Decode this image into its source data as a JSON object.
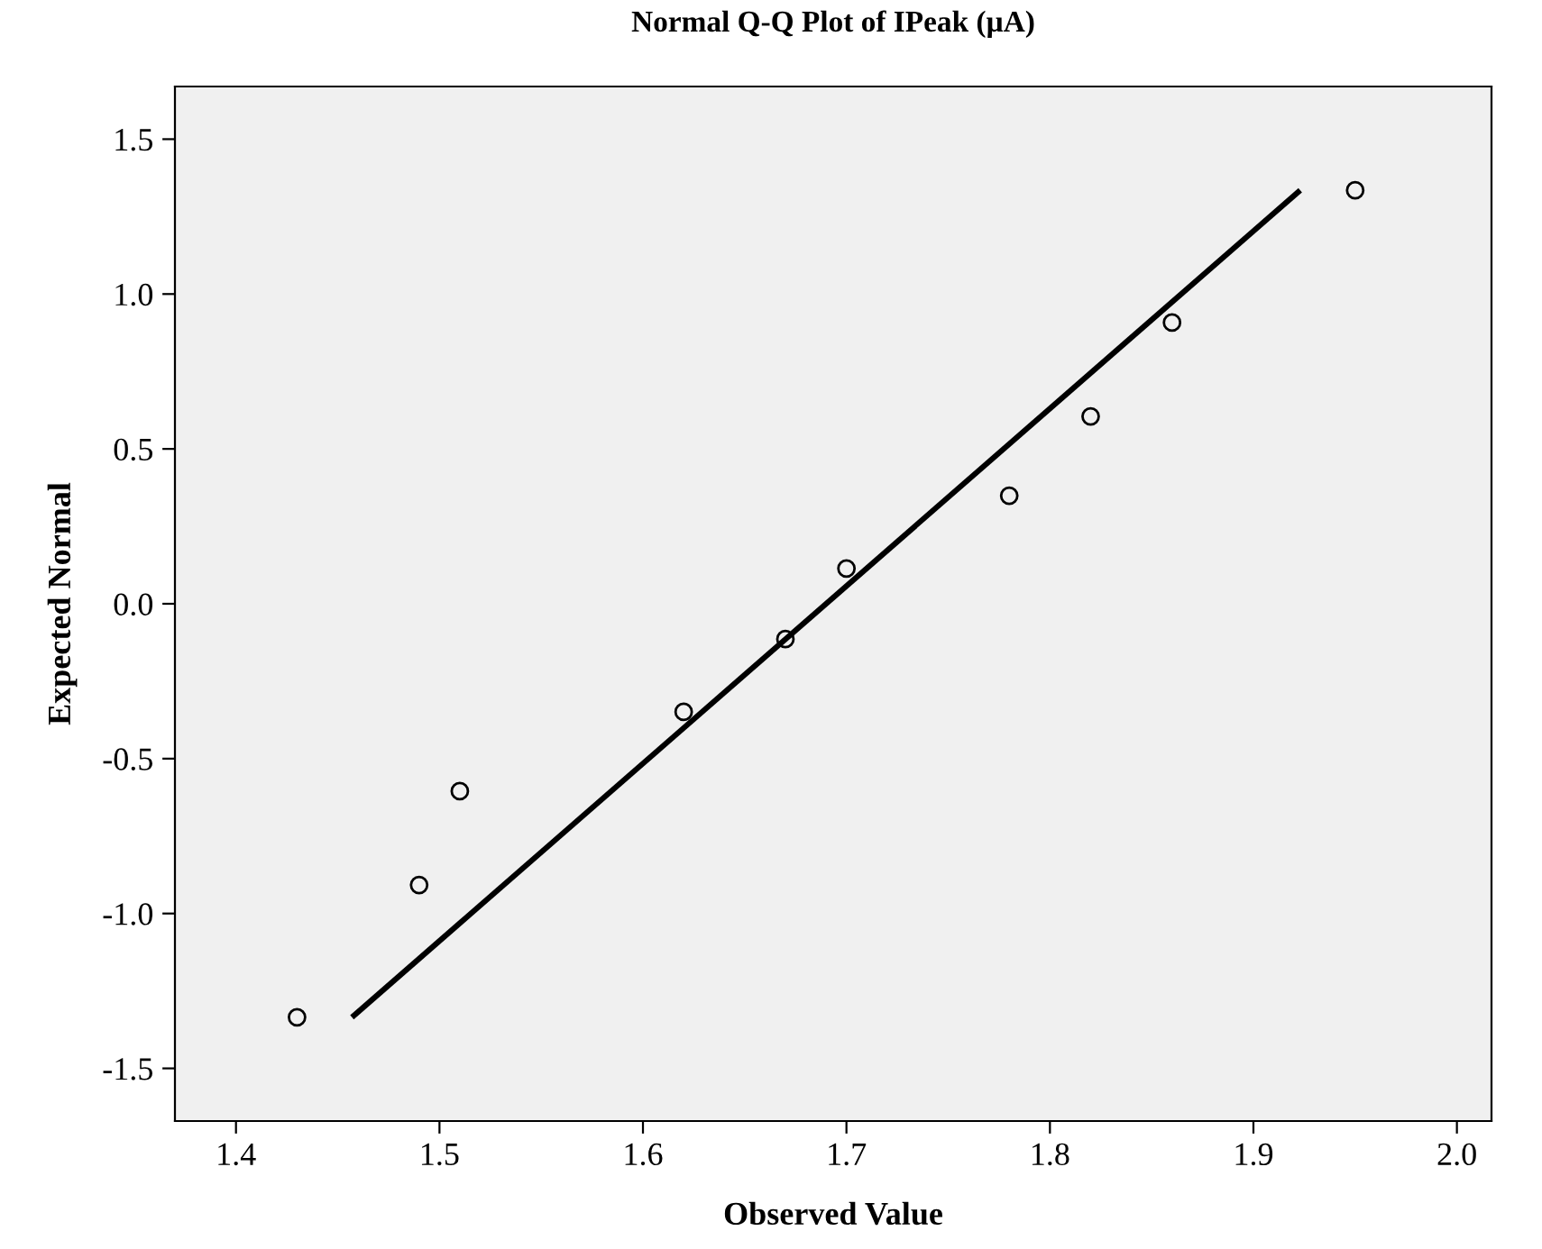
{
  "chart_data": {
    "type": "scatter",
    "title": "Normal Q-Q Plot of IPeak (µA)",
    "xlabel": "Observed Value",
    "ylabel": "Expected Normal",
    "xlim": [
      1.37,
      2.017
    ],
    "ylim": [
      -1.67,
      1.67
    ],
    "xticks": [
      1.4,
      1.5,
      1.6,
      1.7,
      1.8,
      1.9,
      {
        "value": 2,
        "label": "2.0"
      }
    ],
    "yticks": [
      1.5,
      {
        "value": 1,
        "label": "1.0"
      },
      0.5,
      {
        "value": 0,
        "label": "0.0"
      },
      -0.5,
      {
        "value": -1,
        "label": "-1.0"
      },
      -1.5
    ],
    "grid": false,
    "series": [
      {
        "type": "scatter",
        "marker": "circle",
        "color": "#000000",
        "x": [
          1.43,
          1.49,
          1.51,
          1.62,
          1.67,
          1.7,
          1.78,
          1.82,
          1.86,
          1.95
        ],
        "values": [
          -1.335,
          -0.908,
          -0.605,
          -0.349,
          -0.114,
          0.114,
          0.349,
          0.605,
          0.908,
          1.335
        ]
      },
      {
        "type": "line",
        "color": "#000000",
        "x": [
          1.457,
          1.923
        ],
        "values": [
          -1.335,
          1.335
        ]
      }
    ]
  }
}
